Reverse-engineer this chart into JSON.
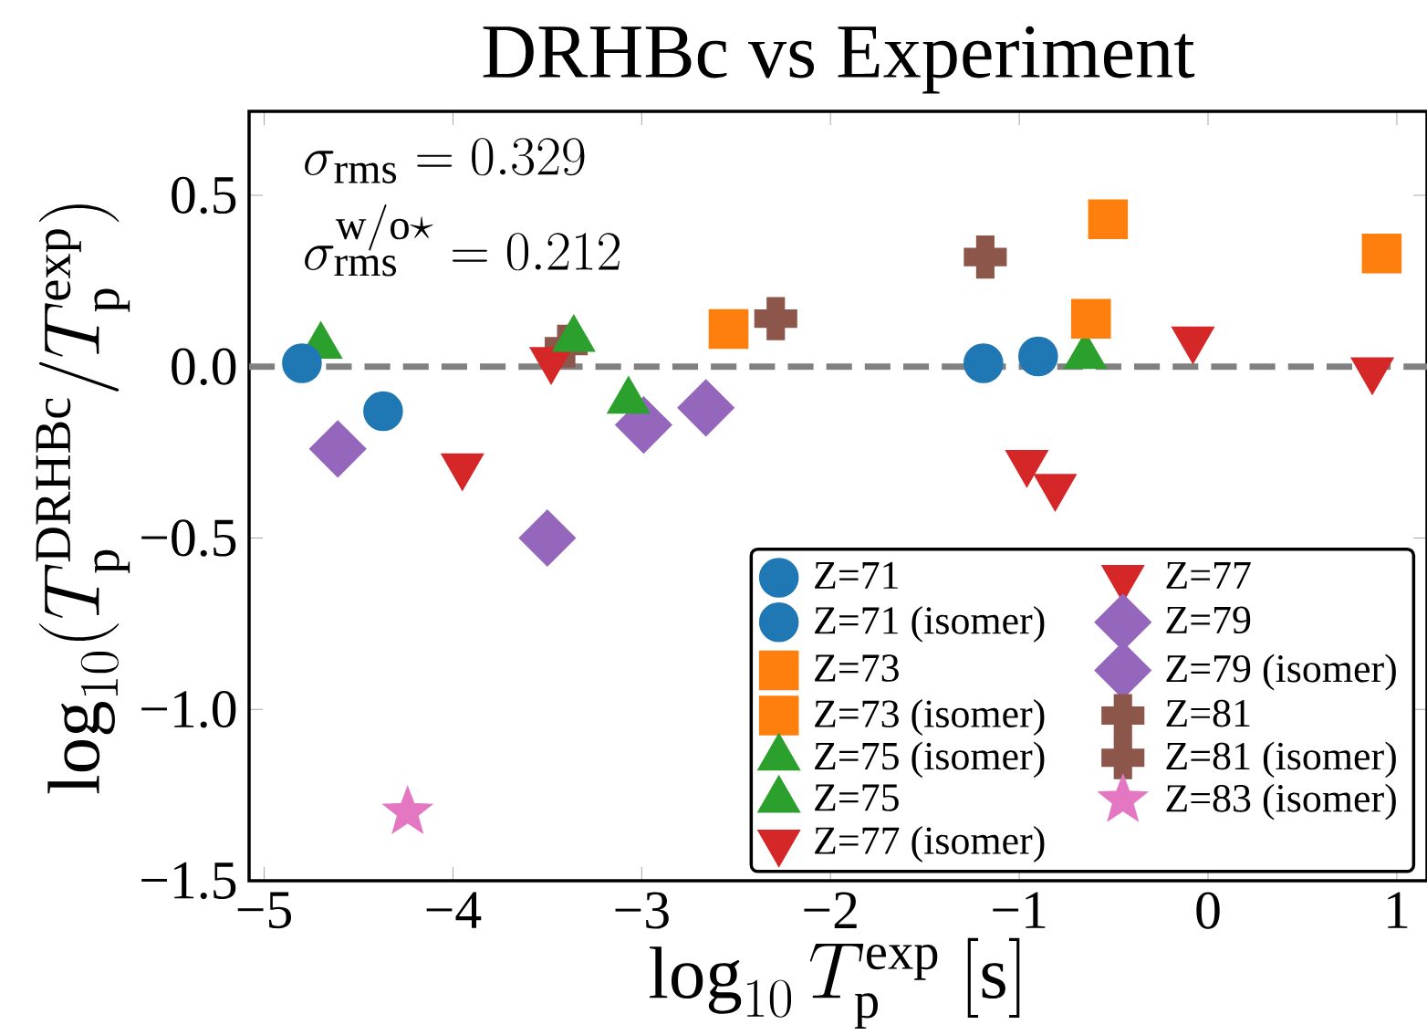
{
  "chart_data": {
    "type": "scatter",
    "title": "DRHBc vs Experiment",
    "xlabel": "\\log_{10} T_{\\rm p}^{\\rm exp}\\ [{\\rm s}]",
    "ylabel": "\\log_{10}(T_{\\rm p}^{\\rm DRHBc}/T_{\\rm p}^{\\rm exp})",
    "annotations": [
      "\\sigma_{\\rm rms} = 0.329",
      "\\sigma_{\\rm rms}^{{\\rm w/o}\\star} = 0.212"
    ],
    "xlim": [
      -5.08,
      1.16
    ],
    "ylim": [
      -1.5,
      0.745
    ],
    "xticks": [
      {
        "value": -5,
        "label": "−5"
      },
      {
        "value": -4,
        "label": "−4"
      },
      {
        "value": -3,
        "label": "−3"
      },
      {
        "value": -2,
        "label": "−2"
      },
      {
        "value": -1,
        "label": "−1"
      },
      0,
      1
    ],
    "yticks": [
      {
        "value": -1.5,
        "label": "−1.5"
      },
      {
        "value": -1.0,
        "label": "−1.0"
      },
      {
        "value": -0.5,
        "label": "−0.5"
      },
      {
        "value": 0.0,
        "label": "0.0"
      },
      0.5
    ],
    "grid": false,
    "legend": "bottom right",
    "ref_lines": [
      {
        "axis": "y",
        "value": 0,
        "color": "#808080",
        "line_style": "dashed"
      }
    ],
    "series": [
      {
        "name": "Z=71",
        "color": "#1f77b4",
        "marker": "circle",
        "x": [
          -1.19,
          -0.9
        ],
        "values": [
          0.01,
          0.03
        ]
      },
      {
        "name": "Z=71 (isomer)",
        "color": "#1f77b4",
        "marker": "circle",
        "x": [
          -4.8,
          -4.37
        ],
        "values": [
          0.01,
          -0.13
        ]
      },
      {
        "name": "Z=73",
        "color": "#ff7f0e",
        "marker": "square",
        "x": [
          -2.54,
          -0.53,
          -0.62
        ],
        "values": [
          0.11,
          0.43,
          0.14
        ]
      },
      {
        "name": "Z=73 (isomer)",
        "color": "#ff7f0e",
        "marker": "square",
        "x": [
          0.92
        ],
        "values": [
          0.33
        ]
      },
      {
        "name": "Z=75 (isomer)",
        "color": "#2ca02c",
        "marker": "triangle",
        "x": [
          -4.7,
          -0.65
        ],
        "values": [
          0.06,
          0.03
        ]
      },
      {
        "name": "Z=75",
        "color": "#2ca02c",
        "marker": "triangle",
        "x": [
          -3.36,
          -3.07
        ],
        "values": [
          0.08,
          -0.1
        ]
      },
      {
        "name": "Z=77 (isomer)",
        "color": "#d62728",
        "marker": "triangle_down",
        "x": [
          -3.48,
          -3.95,
          -0.08,
          0.87
        ],
        "values": [
          0.02,
          -0.29,
          0.08,
          -0.01
        ]
      },
      {
        "name": "Z=77",
        "color": "#d62728",
        "marker": "triangle_down",
        "x": [
          -0.96,
          -0.81
        ],
        "values": [
          -0.28,
          -0.35
        ]
      },
      {
        "name": "Z=79",
        "color": "#9467bd",
        "marker": "diamond",
        "x": [
          -4.61,
          -3.5
        ],
        "values": [
          -0.24,
          -0.5
        ]
      },
      {
        "name": "Z=79 (isomer)",
        "color": "#9467bd",
        "marker": "diamond",
        "x": [
          -2.99,
          -2.66
        ],
        "values": [
          -0.17,
          -0.12
        ]
      },
      {
        "name": "Z=81",
        "color": "#8c564b",
        "marker": "cross",
        "x": [
          -1.18,
          -2.29
        ],
        "values": [
          0.32,
          0.14
        ]
      },
      {
        "name": "Z=81 (isomer)",
        "color": "#8c564b",
        "marker": "cross",
        "x": [
          -3.4
        ],
        "values": [
          0.06
        ]
      },
      {
        "name": "Z=83 (isomer)",
        "color": "#e377c2",
        "marker": "star",
        "x": [
          -4.24
        ],
        "values": [
          -1.3
        ]
      }
    ]
  }
}
